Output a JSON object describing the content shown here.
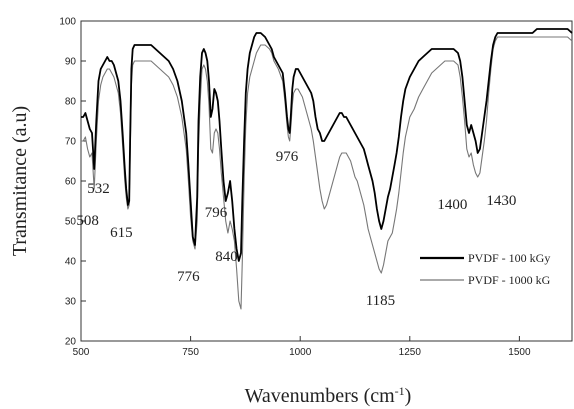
{
  "chart_data": {
    "type": "line",
    "title": "",
    "xlabel": "Wavenumbers (cm",
    "xlabel_sup": "-1",
    "xlabel_close": ")",
    "ylabel": "Transmitance (a.u)",
    "xlim": [
      500,
      1620
    ],
    "ylim": [
      20,
      100
    ],
    "x_ticks": [
      500,
      750,
      1000,
      1250,
      1500
    ],
    "y_ticks": [
      20,
      30,
      40,
      50,
      60,
      70,
      80,
      90,
      100
    ],
    "grid": false,
    "legend_position": "bottom-right",
    "series": [
      {
        "name": "PVDF - 100 kGy",
        "color": "#000000",
        "x": [
          500,
          505,
          510,
          515,
          520,
          525,
          530,
          535,
          540,
          545,
          550,
          555,
          560,
          565,
          570,
          575,
          580,
          585,
          590,
          595,
          600,
          603,
          607,
          610,
          612,
          615,
          618,
          622,
          626,
          630,
          640,
          650,
          660,
          670,
          680,
          690,
          700,
          710,
          720,
          730,
          740,
          745,
          750,
          755,
          760,
          765,
          768,
          772,
          776,
          780,
          784,
          788,
          792,
          796,
          800,
          804,
          808,
          812,
          816,
          820,
          825,
          830,
          835,
          840,
          845,
          850,
          855,
          860,
          865,
          868,
          872,
          876,
          880,
          885,
          890,
          895,
          900,
          905,
          910,
          920,
          930,
          935,
          940,
          950,
          960,
          965,
          970,
          973,
          976,
          979,
          982,
          985,
          990,
          995,
          1000,
          1005,
          1010,
          1015,
          1020,
          1025,
          1030,
          1035,
          1040,
          1045,
          1050,
          1055,
          1060,
          1065,
          1070,
          1075,
          1080,
          1085,
          1090,
          1095,
          1100,
          1105,
          1110,
          1115,
          1120,
          1125,
          1130,
          1135,
          1140,
          1145,
          1150,
          1155,
          1160,
          1165,
          1170,
          1175,
          1180,
          1185,
          1190,
          1195,
          1200,
          1205,
          1210,
          1215,
          1220,
          1225,
          1230,
          1235,
          1240,
          1250,
          1260,
          1270,
          1280,
          1290,
          1300,
          1310,
          1320,
          1330,
          1340,
          1350,
          1360,
          1365,
          1370,
          1375,
          1380,
          1385,
          1390,
          1395,
          1400,
          1405,
          1410,
          1415,
          1420,
          1425,
          1430,
          1435,
          1440,
          1445,
          1450,
          1455,
          1460,
          1465,
          1470,
          1480,
          1490,
          1500,
          1510,
          1520,
          1530,
          1540,
          1550,
          1560,
          1570,
          1580,
          1590,
          1600,
          1610,
          1620
        ],
        "y": [
          76,
          76,
          77,
          75,
          73,
          72,
          63,
          75,
          85,
          88,
          89,
          90,
          91,
          90,
          90,
          89,
          87,
          85,
          80,
          72,
          63,
          58,
          54,
          55,
          70,
          88,
          93,
          94,
          94,
          94,
          94,
          94,
          94,
          93,
          92,
          91,
          90,
          88,
          85,
          80,
          72,
          64,
          55,
          46,
          44,
          56,
          75,
          86,
          92,
          93,
          92,
          90,
          85,
          76,
          78,
          83,
          82,
          80,
          75,
          68,
          60,
          55,
          57,
          60,
          55,
          48,
          43,
          40,
          42,
          55,
          70,
          82,
          88,
          92,
          94,
          96,
          97,
          97,
          97,
          96,
          94,
          93,
          91,
          89,
          87,
          82,
          76,
          73,
          72,
          77,
          83,
          86,
          88,
          88,
          87,
          86,
          85,
          84,
          83,
          82,
          80,
          76,
          73,
          72,
          70,
          70,
          71,
          72,
          73,
          74,
          75,
          76,
          77,
          77,
          76,
          76,
          75,
          74,
          73,
          72,
          71,
          70,
          69,
          68,
          66,
          64,
          62,
          60,
          57,
          53,
          50,
          48,
          50,
          53,
          56,
          58,
          61,
          64,
          67,
          71,
          76,
          80,
          83,
          86,
          88,
          90,
          91,
          92,
          93,
          93,
          93,
          93,
          93,
          93,
          92,
          90,
          86,
          80,
          74,
          72,
          74,
          72,
          70,
          67,
          68,
          72,
          76,
          80,
          85,
          90,
          94,
          96,
          97,
          97,
          97,
          97,
          97,
          97,
          97,
          97,
          97,
          97,
          97,
          98,
          98,
          98,
          98,
          98,
          98,
          98,
          98,
          97
        ]
      },
      {
        "name": "PVDF - 1000 kG",
        "color": "#777777",
        "x": [
          500,
          505,
          510,
          515,
          520,
          525,
          530,
          535,
          540,
          545,
          550,
          555,
          560,
          565,
          570,
          575,
          580,
          585,
          590,
          595,
          600,
          603,
          607,
          610,
          612,
          615,
          618,
          622,
          626,
          630,
          640,
          650,
          660,
          670,
          680,
          690,
          700,
          710,
          720,
          730,
          740,
          745,
          750,
          755,
          760,
          765,
          768,
          772,
          776,
          780,
          784,
          788,
          792,
          796,
          800,
          804,
          808,
          812,
          816,
          820,
          825,
          830,
          835,
          840,
          845,
          850,
          855,
          860,
          865,
          868,
          872,
          876,
          880,
          885,
          890,
          895,
          900,
          905,
          910,
          920,
          930,
          935,
          940,
          950,
          960,
          965,
          970,
          973,
          976,
          979,
          982,
          985,
          990,
          995,
          1000,
          1005,
          1010,
          1015,
          1020,
          1025,
          1030,
          1035,
          1040,
          1045,
          1050,
          1055,
          1060,
          1065,
          1070,
          1075,
          1080,
          1085,
          1090,
          1095,
          1100,
          1105,
          1110,
          1115,
          1120,
          1125,
          1130,
          1135,
          1140,
          1145,
          1150,
          1155,
          1160,
          1165,
          1170,
          1175,
          1180,
          1185,
          1190,
          1195,
          1200,
          1205,
          1210,
          1215,
          1220,
          1225,
          1230,
          1235,
          1240,
          1250,
          1260,
          1270,
          1280,
          1290,
          1300,
          1310,
          1320,
          1330,
          1340,
          1350,
          1360,
          1365,
          1370,
          1375,
          1380,
          1385,
          1390,
          1395,
          1400,
          1405,
          1410,
          1415,
          1420,
          1425,
          1430,
          1435,
          1440,
          1445,
          1450,
          1455,
          1460,
          1465,
          1470,
          1480,
          1490,
          1500,
          1510,
          1520,
          1530,
          1540,
          1550,
          1560,
          1570,
          1580,
          1590,
          1600,
          1610,
          1620
        ],
        "y": [
          70,
          70,
          71,
          68,
          66,
          67,
          58,
          70,
          80,
          84,
          86,
          87,
          88,
          88,
          87,
          86,
          84,
          82,
          77,
          69,
          60,
          56,
          53,
          54,
          66,
          84,
          89,
          90,
          90,
          90,
          90,
          90,
          90,
          89,
          88,
          87,
          86,
          84,
          81,
          76,
          68,
          60,
          51,
          45,
          43,
          50,
          68,
          80,
          88,
          89,
          88,
          85,
          79,
          68,
          67,
          72,
          73,
          72,
          68,
          62,
          56,
          50,
          47,
          50,
          48,
          45,
          38,
          30,
          28,
          40,
          60,
          74,
          82,
          86,
          88,
          90,
          92,
          93,
          94,
          94,
          93,
          92,
          90,
          88,
          85,
          80,
          74,
          71,
          70,
          74,
          79,
          82,
          83,
          83,
          82,
          81,
          79,
          77,
          75,
          73,
          70,
          66,
          62,
          58,
          55,
          53,
          54,
          56,
          58,
          60,
          62,
          64,
          66,
          67,
          67,
          67,
          66,
          65,
          63,
          61,
          60,
          58,
          56,
          54,
          51,
          48,
          46,
          44,
          42,
          40,
          38,
          37,
          39,
          42,
          45,
          46,
          47,
          50,
          53,
          57,
          62,
          67,
          71,
          76,
          78,
          81,
          83,
          85,
          87,
          88,
          89,
          90,
          90,
          90,
          89,
          86,
          81,
          75,
          68,
          66,
          67,
          64,
          62,
          61,
          62,
          66,
          70,
          75,
          82,
          88,
          93,
          95,
          96,
          96,
          96,
          96,
          96,
          96,
          96,
          96,
          96,
          96,
          96,
          96,
          96,
          96,
          96,
          96,
          96,
          96,
          96,
          95
        ]
      }
    ],
    "annotations": [
      {
        "text": "508",
        "x": 515,
        "y": 49
      },
      {
        "text": "532",
        "x": 540,
        "y": 57
      },
      {
        "text": "615",
        "x": 592,
        "y": 46
      },
      {
        "text": "776",
        "x": 745,
        "y": 35
      },
      {
        "text": "796",
        "x": 808,
        "y": 51
      },
      {
        "text": "840",
        "x": 832,
        "y": 40
      },
      {
        "text": "976",
        "x": 970,
        "y": 65
      },
      {
        "text": "1185",
        "x": 1183,
        "y": 29
      },
      {
        "text": "1400",
        "x": 1347,
        "y": 53
      },
      {
        "text": "1430",
        "x": 1459,
        "y": 54
      }
    ]
  }
}
